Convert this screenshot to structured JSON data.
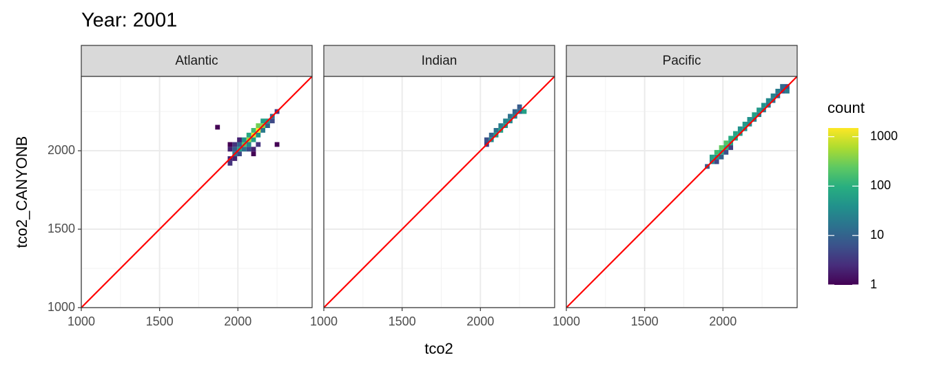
{
  "chart_data": {
    "type": "heatmap",
    "title": "Year: 2001",
    "x_label": "tco2",
    "y_label": "tco2_CANYONB",
    "xlim": [
      1000,
      2474
    ],
    "ylim": [
      1000,
      2474
    ],
    "xticks": [
      1000,
      1500,
      2000
    ],
    "yticks": [
      1000,
      1500,
      2000
    ],
    "minor_ticks": [
      1250,
      1750,
      2250
    ],
    "grid": true,
    "bin_width": 30,
    "abline": {
      "intercept": 0,
      "slope": 1,
      "color": "#ff0000"
    },
    "legend": {
      "title": "count",
      "log_scale": true,
      "limits": [
        1,
        1500
      ],
      "ticks": [
        1,
        10,
        100,
        1000
      ],
      "colors": [
        "#440154",
        "#472d7b",
        "#3b528b",
        "#2c728e",
        "#21918c",
        "#28ae80",
        "#5ec962",
        "#addc30",
        "#fde725"
      ]
    },
    "facets": [
      {
        "name": "Atlantic",
        "x": [
          1870,
          1950,
          1950,
          1950,
          1950,
          1980,
          1980,
          1980,
          1980,
          2010,
          2010,
          2010,
          2010,
          2040,
          2040,
          2040,
          2070,
          2070,
          2070,
          2070,
          2100,
          2100,
          2100,
          2100,
          2100,
          2130,
          2130,
          2130,
          2130,
          2160,
          2160,
          2160,
          2190,
          2190,
          2220,
          2220,
          2250,
          2250
        ],
        "y": [
          2150,
          1950,
          2010,
          2040,
          1920,
          1980,
          2010,
          2040,
          1950,
          2010,
          1980,
          2040,
          2070,
          2040,
          2070,
          2010,
          2070,
          2040,
          2100,
          2010,
          2100,
          2070,
          2130,
          2010,
          1980,
          2130,
          2100,
          2160,
          2040,
          2160,
          2190,
          2130,
          2190,
          2160,
          2220,
          2190,
          2250,
          2040
        ],
        "count": [
          1,
          2,
          2,
          1,
          3,
          20,
          8,
          3,
          2,
          60,
          5,
          10,
          2,
          200,
          40,
          15,
          500,
          30,
          80,
          5,
          1200,
          60,
          150,
          2,
          1,
          1500,
          40,
          300,
          3,
          400,
          60,
          20,
          50,
          10,
          15,
          5,
          3,
          1
        ]
      },
      {
        "name": "Indian",
        "x": [
          2040,
          2040,
          2070,
          2070,
          2100,
          2100,
          2130,
          2130,
          2160,
          2160,
          2190,
          2190,
          2220,
          2220,
          2250,
          2250,
          2280
        ],
        "y": [
          2040,
          2070,
          2070,
          2100,
          2100,
          2130,
          2130,
          2160,
          2160,
          2190,
          2190,
          2220,
          2220,
          2250,
          2250,
          2280,
          2250
        ],
        "count": [
          4,
          6,
          30,
          10,
          50,
          15,
          60,
          20,
          40,
          25,
          30,
          15,
          20,
          10,
          12,
          8,
          60
        ]
      },
      {
        "name": "Pacific",
        "x": [
          1900,
          1930,
          1930,
          1960,
          1960,
          1960,
          1990,
          1990,
          1990,
          2020,
          2020,
          2020,
          2050,
          2050,
          2050,
          2080,
          2080,
          2110,
          2110,
          2140,
          2140,
          2170,
          2170,
          2200,
          2200,
          2230,
          2230,
          2260,
          2260,
          2290,
          2290,
          2320,
          2320,
          2350,
          2350,
          2380,
          2380,
          2410,
          2410
        ],
        "y": [
          1900,
          1930,
          1960,
          1960,
          1990,
          1930,
          1990,
          2020,
          1960,
          2020,
          2050,
          1990,
          2050,
          2080,
          2020,
          2080,
          2110,
          2110,
          2140,
          2140,
          2170,
          2170,
          2200,
          2200,
          2230,
          2230,
          2260,
          2260,
          2290,
          2290,
          2320,
          2320,
          2350,
          2350,
          2380,
          2380,
          2410,
          2410,
          2380
        ],
        "count": [
          8,
          30,
          60,
          40,
          150,
          5,
          80,
          250,
          10,
          100,
          200,
          6,
          80,
          90,
          4,
          60,
          70,
          50,
          40,
          40,
          50,
          30,
          40,
          25,
          60,
          20,
          50,
          20,
          40,
          15,
          30,
          15,
          25,
          10,
          20,
          8,
          12,
          6,
          20
        ]
      }
    ]
  }
}
